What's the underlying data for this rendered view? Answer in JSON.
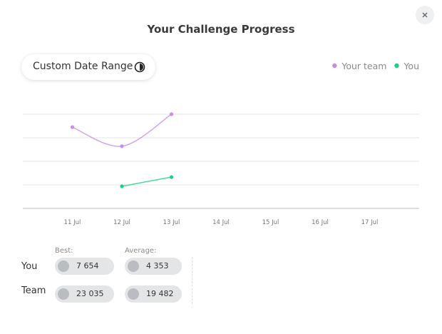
{
  "header": {
    "title": "Your Challenge Progress"
  },
  "date_button": {
    "label": "Custom Date Range"
  },
  "chart_data": {
    "type": "line",
    "categories": [
      "11 Jul",
      "12 Jul",
      "13 Jul",
      "14 Jul",
      "15 Jul",
      "16 Jul",
      "17 Jul"
    ],
    "series": [
      {
        "name": "Your team",
        "color": "#c58fe6",
        "values": [
          3.45,
          2.64,
          4,
          null,
          null,
          null,
          null
        ]
      },
      {
        "name": "You",
        "color": "#1fcf85",
        "values": [
          null,
          0.94,
          1.33,
          null,
          null,
          null,
          null
        ]
      }
    ],
    "ylim": [
      0,
      4
    ],
    "yticks": [
      0,
      1,
      2,
      3,
      4
    ],
    "grid": true,
    "legend": "top-right"
  },
  "stats": {
    "columns": [
      "Best:",
      "Average:"
    ],
    "rows": [
      {
        "label": "You",
        "values": [
          "7 654",
          "4 353"
        ]
      },
      {
        "label": "Team",
        "values": [
          "23 035",
          "19 482"
        ]
      }
    ]
  }
}
